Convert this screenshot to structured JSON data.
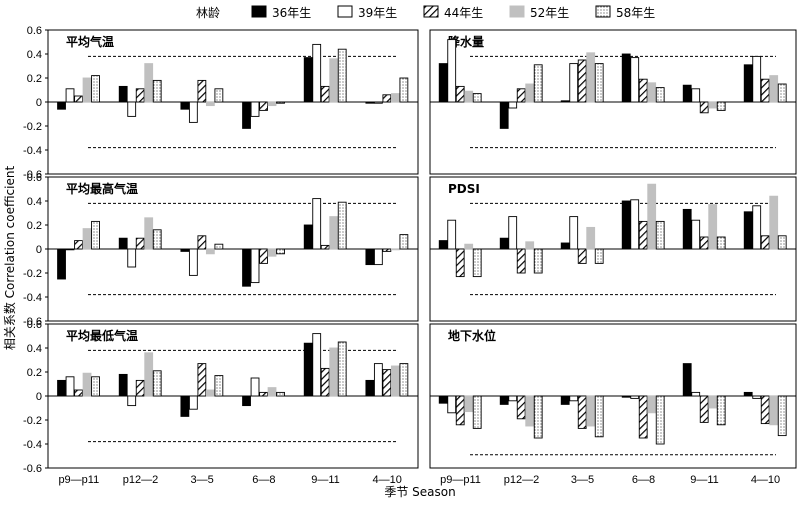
{
  "legend": {
    "title": "林龄",
    "entries": [
      "36年生",
      "39年生",
      "44年生",
      "52年生",
      "58年生"
    ]
  },
  "xlabel": "季节 Season",
  "ylabel": "相关系数 Correlation coefficient",
  "colors": {
    "s36": "#000000",
    "s39": "#ffffff",
    "s44": "hatch",
    "s52": "#c0c0c0",
    "s58": "dots"
  },
  "chart_data": [
    {
      "type": "bar",
      "title": "平均气温",
      "categories": [
        "p9—p11",
        "p12—2",
        "3—5",
        "6—8",
        "9—11",
        "4—10"
      ],
      "ylim": [
        -0.6,
        0.6
      ],
      "yticks": [
        "0.6",
        "0.4",
        "0.2",
        "0",
        "-0.2",
        "-0.4",
        "-0.6"
      ],
      "threshold": [
        0.38,
        -0.38
      ],
      "series": [
        {
          "name": "36年生",
          "values": [
            -0.06,
            0.13,
            -0.06,
            -0.22,
            0.37,
            -0.01
          ]
        },
        {
          "name": "39年生",
          "values": [
            0.11,
            -0.12,
            -0.17,
            -0.12,
            0.48,
            -0.01
          ]
        },
        {
          "name": "44年生",
          "values": [
            0.05,
            0.11,
            0.18,
            -0.07,
            0.13,
            0.06
          ]
        },
        {
          "name": "52年生",
          "values": [
            0.2,
            0.32,
            -0.03,
            -0.03,
            0.36,
            0.07
          ]
        },
        {
          "name": "58年生",
          "values": [
            0.22,
            0.18,
            0.11,
            -0.01,
            0.44,
            0.2
          ]
        }
      ]
    },
    {
      "type": "bar",
      "title": "降水量",
      "categories": [
        "p9—p11",
        "p12—2",
        "3—5",
        "6—8",
        "9—11",
        "4—10"
      ],
      "ylim": [
        -0.6,
        0.6
      ],
      "yticks": [
        "0.6",
        "0.4",
        "0.2",
        "0",
        "-0.2",
        "-0.4",
        "-0.6"
      ],
      "threshold": [
        0.38,
        -0.38
      ],
      "series": [
        {
          "name": "36年生",
          "values": [
            0.32,
            -0.22,
            0.01,
            0.4,
            0.14,
            0.31
          ]
        },
        {
          "name": "39年生",
          "values": [
            0.52,
            -0.05,
            0.32,
            0.37,
            0.11,
            0.38
          ]
        },
        {
          "name": "44年生",
          "values": [
            0.13,
            0.11,
            0.35,
            0.19,
            -0.09,
            0.19
          ]
        },
        {
          "name": "52年生",
          "values": [
            0.09,
            0.15,
            0.41,
            0.16,
            -0.05,
            0.22
          ]
        },
        {
          "name": "58年生",
          "values": [
            0.07,
            0.31,
            0.32,
            0.12,
            -0.07,
            0.15
          ]
        }
      ]
    },
    {
      "type": "bar",
      "title": "平均最高气温",
      "categories": [
        "p9—p11",
        "p12—2",
        "3—5",
        "6—8",
        "9—11",
        "4—10"
      ],
      "ylim": [
        -0.6,
        0.6
      ],
      "yticks": [
        "0.6",
        "0.4",
        "0.2",
        "0",
        "-0.2",
        "-0.4",
        "-0.6"
      ],
      "threshold": [
        0.38,
        -0.38
      ],
      "series": [
        {
          "name": "36年生",
          "values": [
            -0.25,
            0.09,
            -0.02,
            -0.31,
            0.2,
            -0.13
          ]
        },
        {
          "name": "39年生",
          "values": [
            0.0,
            -0.15,
            -0.22,
            -0.28,
            0.42,
            -0.13
          ]
        },
        {
          "name": "44年生",
          "values": [
            0.07,
            0.09,
            0.11,
            -0.12,
            0.03,
            -0.02
          ]
        },
        {
          "name": "52年生",
          "values": [
            0.17,
            0.26,
            -0.04,
            -0.06,
            0.27,
            0.0
          ]
        },
        {
          "name": "58年生",
          "values": [
            0.23,
            0.16,
            0.04,
            -0.04,
            0.39,
            0.12
          ]
        }
      ]
    },
    {
      "type": "bar",
      "title": "PDSI",
      "categories": [
        "p9—p11",
        "p12—2",
        "3—5",
        "6—8",
        "9—11",
        "4—10"
      ],
      "ylim": [
        -0.6,
        0.6
      ],
      "yticks": [
        "0.6",
        "0.4",
        "0.2",
        "0",
        "-0.2",
        "-0.4",
        "-0.6"
      ],
      "threshold": [
        0.38,
        -0.38
      ],
      "series": [
        {
          "name": "36年生",
          "values": [
            0.07,
            0.09,
            0.05,
            0.4,
            0.33,
            0.31
          ]
        },
        {
          "name": "39年生",
          "values": [
            0.24,
            0.27,
            0.27,
            0.41,
            0.24,
            0.36
          ]
        },
        {
          "name": "44年生",
          "values": [
            -0.23,
            -0.2,
            -0.12,
            0.23,
            0.1,
            0.11
          ]
        },
        {
          "name": "52年生",
          "values": [
            0.04,
            0.06,
            0.18,
            0.54,
            0.37,
            0.44
          ]
        },
        {
          "name": "58年生",
          "values": [
            -0.23,
            -0.2,
            -0.12,
            0.23,
            0.1,
            0.11
          ]
        }
      ]
    },
    {
      "type": "bar",
      "title": "平均最低气温",
      "categories": [
        "p9—p11",
        "p12—2",
        "3—5",
        "6—8",
        "9—11",
        "4—10"
      ],
      "ylim": [
        -0.6,
        0.6
      ],
      "yticks": [
        "0.6",
        "0.4",
        "0.2",
        "0",
        "-0.2",
        "-0.4",
        "-0.6"
      ],
      "threshold": [
        0.38,
        -0.38
      ],
      "series": [
        {
          "name": "36年生",
          "values": [
            0.13,
            0.18,
            -0.17,
            -0.08,
            0.44,
            0.13
          ]
        },
        {
          "name": "39年生",
          "values": [
            0.16,
            -0.08,
            -0.11,
            0.15,
            0.52,
            0.27
          ]
        },
        {
          "name": "44年生",
          "values": [
            0.05,
            0.13,
            0.27,
            0.03,
            0.23,
            0.22
          ]
        },
        {
          "name": "52年生",
          "values": [
            0.19,
            0.36,
            0.05,
            0.07,
            0.4,
            0.25
          ]
        },
        {
          "name": "58年生",
          "values": [
            0.16,
            0.21,
            0.17,
            0.03,
            0.45,
            0.27
          ]
        }
      ]
    },
    {
      "type": "bar",
      "title": "地下水位",
      "categories": [
        "p9—p11",
        "p12—2",
        "3—5",
        "6—8",
        "9—11",
        "4—10"
      ],
      "ylim": [
        -0.6,
        0.6
      ],
      "yticks": [
        "0.6",
        "0.4",
        "0.2",
        "0",
        "-0.2",
        "-0.4",
        "-0.6"
      ],
      "threshold": [
        -0.49
      ],
      "series": [
        {
          "name": "36年生",
          "values": [
            -0.06,
            -0.07,
            -0.07,
            -0.01,
            0.27,
            0.03
          ]
        },
        {
          "name": "39年生",
          "values": [
            -0.14,
            -0.04,
            -0.04,
            -0.02,
            0.03,
            -0.02
          ]
        },
        {
          "name": "44年生",
          "values": [
            -0.24,
            -0.19,
            -0.27,
            -0.35,
            -0.22,
            -0.23
          ]
        },
        {
          "name": "52年生",
          "values": [
            -0.13,
            -0.25,
            -0.25,
            -0.14,
            -0.1,
            -0.24
          ]
        },
        {
          "name": "58年生",
          "values": [
            -0.27,
            -0.35,
            -0.34,
            -0.4,
            -0.24,
            -0.33
          ]
        }
      ]
    }
  ]
}
